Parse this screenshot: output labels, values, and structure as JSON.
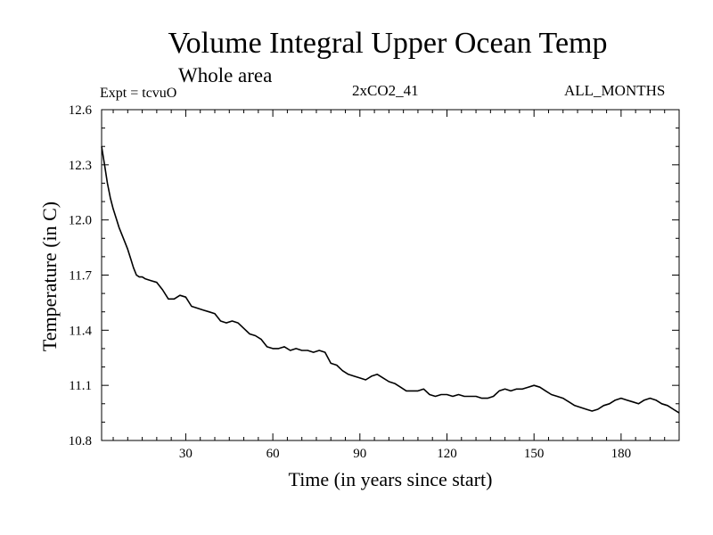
{
  "chart_data": {
    "type": "line",
    "title": "Volume Integral Upper Ocean Temp",
    "subtitle": "Whole area",
    "experiment": "Expt = tcvuO",
    "run_label": "2xCO2_41",
    "months_label": "ALL_MONTHS",
    "xlabel": "Time (in years since start)",
    "ylabel": "Temperature (in C)",
    "xlim": [
      1,
      200
    ],
    "ylim": [
      10.8,
      12.6
    ],
    "x_ticks": [
      30,
      60,
      90,
      120,
      150,
      180
    ],
    "y_ticks": [
      10.8,
      11.1,
      11.4,
      11.7,
      12.0,
      12.3,
      12.6
    ],
    "x_tick_labels": [
      "30",
      "60",
      "90",
      "120",
      "150",
      "180"
    ],
    "y_tick_labels": [
      "10.8",
      "11.1",
      "11.4",
      "11.7",
      "12.0",
      "12.3",
      "12.6"
    ],
    "grid": false,
    "series": [
      {
        "x": [
          1,
          2,
          3,
          4,
          5,
          6,
          7,
          8,
          9,
          10,
          11,
          12,
          13,
          14,
          15,
          16,
          18,
          20,
          22,
          24,
          26,
          28,
          30,
          32,
          34,
          36,
          38,
          40,
          42,
          44,
          46,
          48,
          50,
          52,
          54,
          56,
          58,
          60,
          62,
          64,
          66,
          68,
          70,
          72,
          74,
          76,
          78,
          80,
          82,
          84,
          86,
          88,
          90,
          92,
          94,
          96,
          98,
          100,
          102,
          104,
          106,
          108,
          110,
          112,
          114,
          116,
          118,
          120,
          122,
          124,
          126,
          128,
          130,
          132,
          134,
          136,
          138,
          140,
          142,
          144,
          146,
          148,
          150,
          152,
          154,
          156,
          158,
          160,
          162,
          164,
          166,
          168,
          170,
          172,
          174,
          176,
          178,
          180,
          182,
          184,
          186,
          188,
          190,
          192,
          194,
          196,
          198,
          200
        ],
        "y": [
          12.4,
          12.3,
          12.2,
          12.12,
          12.06,
          12.01,
          11.96,
          11.92,
          11.88,
          11.84,
          11.79,
          11.74,
          11.7,
          11.69,
          11.69,
          11.68,
          11.67,
          11.66,
          11.62,
          11.57,
          11.57,
          11.59,
          11.58,
          11.53,
          11.52,
          11.51,
          11.5,
          11.49,
          11.45,
          11.44,
          11.45,
          11.44,
          11.41,
          11.38,
          11.37,
          11.35,
          11.31,
          11.3,
          11.3,
          11.31,
          11.29,
          11.3,
          11.29,
          11.29,
          11.28,
          11.29,
          11.28,
          11.22,
          11.21,
          11.18,
          11.16,
          11.15,
          11.14,
          11.13,
          11.15,
          11.16,
          11.14,
          11.12,
          11.11,
          11.09,
          11.07,
          11.07,
          11.07,
          11.08,
          11.05,
          11.04,
          11.05,
          11.05,
          11.04,
          11.05,
          11.04,
          11.04,
          11.04,
          11.03,
          11.03,
          11.04,
          11.07,
          11.08,
          11.07,
          11.08,
          11.08,
          11.09,
          11.1,
          11.09,
          11.07,
          11.05,
          11.04,
          11.03,
          11.01,
          10.99,
          10.98,
          10.97,
          10.96,
          10.97,
          10.99,
          11.0,
          11.02,
          11.03,
          11.02,
          11.01,
          11.0,
          11.02,
          11.03,
          11.02,
          11.0,
          10.99,
          10.97,
          10.95
        ]
      }
    ]
  }
}
